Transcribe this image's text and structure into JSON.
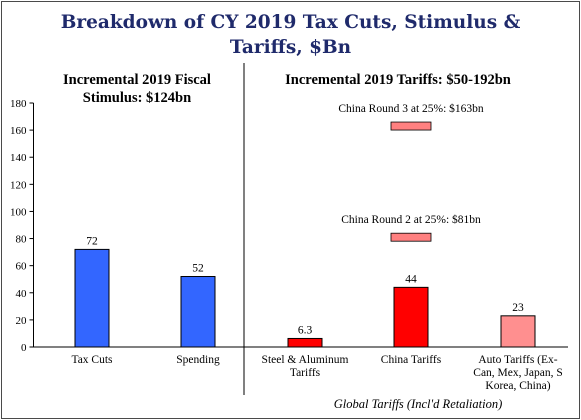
{
  "chart_data": {
    "type": "bar",
    "title": [
      "Breakdown of CY 2019 Tax Cuts, Stimulus &",
      "Tariffs, $Bn"
    ],
    "ylim": [
      0,
      180
    ],
    "yticks": [
      0,
      20,
      40,
      60,
      80,
      100,
      120,
      140,
      160,
      180
    ],
    "grid": false,
    "panels": [
      {
        "heading": [
          "Incremental 2019 Fiscal",
          "Stimulus: $124bn"
        ]
      },
      {
        "heading": [
          "Incremental 2019 Tariffs: $50-192bn"
        ]
      }
    ],
    "categories": [
      [
        "Tax Cuts"
      ],
      [
        "Spending"
      ],
      [
        "Steel & Aluminum",
        "Tariffs"
      ],
      [
        "China Tariffs"
      ],
      [
        "Auto Tariffs (Ex-",
        "Can, Mex, Japan, S",
        "Korea, China)"
      ]
    ],
    "values": [
      72,
      52,
      6.3,
      44,
      23
    ],
    "value_labels": [
      "72",
      "52",
      "6.3",
      "44",
      "23"
    ],
    "colors": [
      "#3366ff",
      "#3366ff",
      "#ff0000",
      "#ff0000",
      "#ff8f8f"
    ],
    "markers": [
      {
        "category": "China Tariffs",
        "value": 81,
        "label": "China Round 2 at 25%: $81bn",
        "color": "#ff8080"
      },
      {
        "category": "China Tariffs",
        "value": 163,
        "label": "China Round 3 at 25%: $163bn",
        "color": "#ff8080"
      }
    ],
    "xlabel": "Global Tariffs (Incl'd Retaliation)"
  }
}
